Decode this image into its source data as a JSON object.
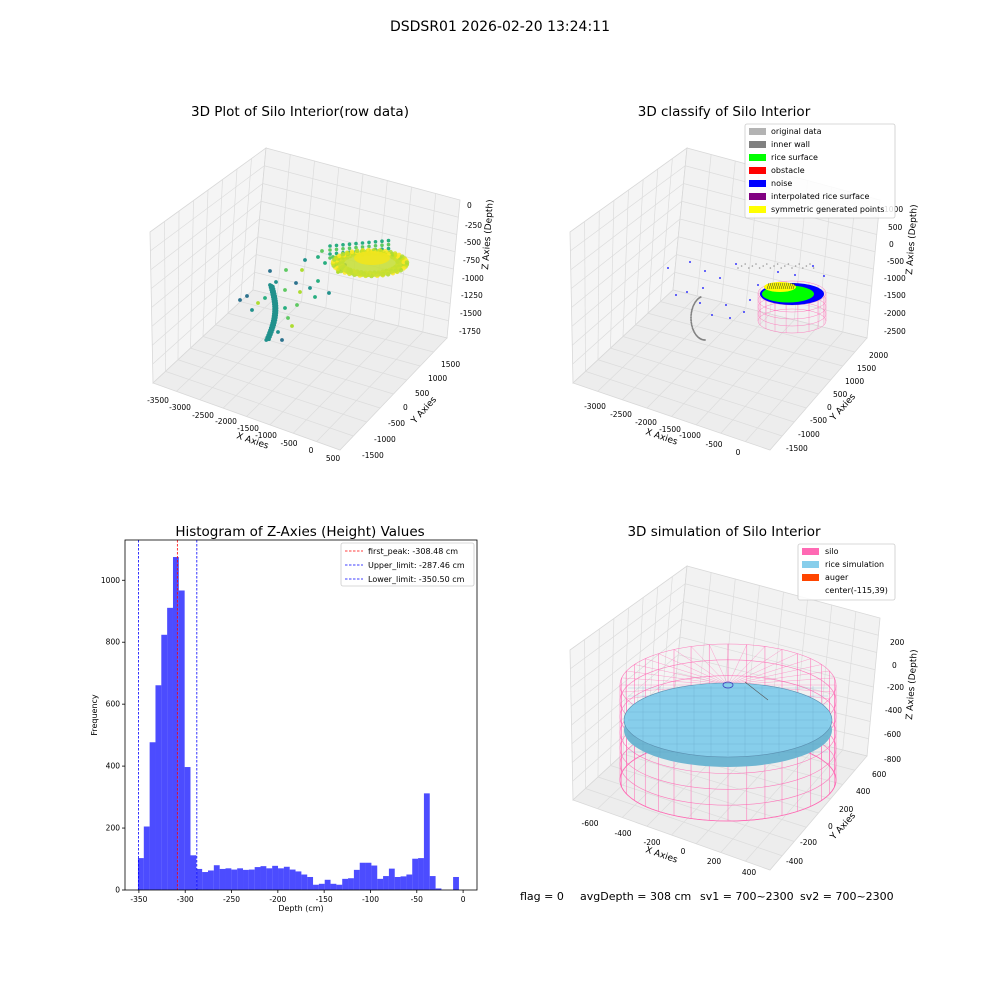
{
  "figure": {
    "suptitle": "DSDSR01 2026-02-20 13:24:11",
    "footer": {
      "flag": "flag = 0",
      "avg_depth": "avgDepth = 308 cm",
      "sv1": "sv1 = 700~2300",
      "sv2": "sv2 = 700~2300"
    }
  },
  "panels": {
    "raw": {
      "title": "3D Plot of Silo Interior(row data)",
      "xlabel": "X Axies",
      "ylabel": "Y Axies",
      "zlabel": "Z Axies (Depth)",
      "xticks": [
        "-3500",
        "-3000",
        "-2500",
        "-2000",
        "-1500",
        "-1000",
        "-500",
        "0",
        "500"
      ],
      "yticks": [
        "-1500",
        "-1000",
        "-500",
        "0",
        "500",
        "1000",
        "1500"
      ],
      "zticks": [
        "0",
        "-250",
        "-500",
        "-750",
        "-1000",
        "-1250",
        "-1500",
        "-1750"
      ]
    },
    "classify": {
      "title": "3D classify of Silo Interior",
      "xlabel": "X Axies",
      "ylabel": "Y Axies",
      "zlabel": "Z Axies (Depth)",
      "xticks": [
        "-3000",
        "-2500",
        "-2000",
        "-1500",
        "-1000",
        "-500",
        "0"
      ],
      "yticks": [
        "-1500",
        "-1000",
        "-500",
        "0",
        "500",
        "1000",
        "1500",
        "2000"
      ],
      "zticks": [
        "1000",
        "500",
        "0",
        "-500",
        "-1000",
        "-1500",
        "-2000",
        "-2500"
      ],
      "legend": [
        {
          "label": "original data",
          "color": "#b3b3b3"
        },
        {
          "label": "inner wall",
          "color": "#808080"
        },
        {
          "label": "rice surface",
          "color": "#00ff00"
        },
        {
          "label": "obstacle",
          "color": "#ff0000"
        },
        {
          "label": "noise",
          "color": "#0000ff"
        },
        {
          "label": "interpolated rice surface",
          "color": "#800080"
        },
        {
          "label": "symmetric generated points",
          "color": "#ffff00"
        }
      ]
    },
    "simulation": {
      "title": "3D simulation of Silo Interior",
      "xlabel": "X Axies",
      "ylabel": "Y Axies",
      "zlabel": "Z Axies (Depth)",
      "xticks": [
        "-600",
        "-400",
        "-200",
        "0",
        "200",
        "400"
      ],
      "yticks": [
        "-400",
        "-200",
        "0",
        "200",
        "400",
        "600"
      ],
      "zticks": [
        "200",
        "0",
        "-200",
        "-400",
        "-600",
        "-800"
      ],
      "legend": [
        {
          "label": "silo",
          "color": "#ff69b4"
        },
        {
          "label": "rice simulation",
          "color": "#87ceeb"
        },
        {
          "label": "auger",
          "color": "#ff4500"
        },
        {
          "label": "center(-115,39)",
          "color": ""
        }
      ]
    }
  },
  "chart_data": [
    {
      "type": "histogram",
      "title": "Histogram of Z-Axies (Height) Values",
      "xlabel": "Depth (cm)",
      "ylabel": "Frequency",
      "bar_color": "#0000ff",
      "xlim": [
        -365,
        15
      ],
      "ylim": [
        0,
        1130
      ],
      "xticks": [
        -350,
        -300,
        -250,
        -200,
        -150,
        -100,
        -50,
        0
      ],
      "yticks": [
        0,
        200,
        400,
        600,
        800,
        1000
      ],
      "bin_width": 6.3,
      "bin_starts": [
        -351,
        -344.7,
        -338.4,
        -332.1,
        -325.8,
        -319.5,
        -313.2,
        -306.9,
        -300.6,
        -294.3,
        -288,
        -281.7,
        -275.4,
        -269.1,
        -262.8,
        -256.5,
        -250.2,
        -243.9,
        -237.6,
        -231.3,
        -225,
        -218.7,
        -212.4,
        -206.1,
        -199.8,
        -193.5,
        -187.2,
        -180.9,
        -174.6,
        -168.3,
        -162,
        -155.7,
        -149.4,
        -143.1,
        -136.8,
        -130.5,
        -124.2,
        -117.9,
        -111.6,
        -105.3,
        -99,
        -92.7,
        -86.4,
        -80.1,
        -73.8,
        -67.5,
        -61.2,
        -54.9,
        -48.6,
        -42.3,
        -36,
        -29.7,
        -23.4,
        -17.1,
        -10.8,
        -4.5
      ],
      "values": [
        103,
        205,
        477,
        661,
        824,
        911,
        1075,
        967,
        397,
        112,
        68,
        58,
        63,
        80,
        68,
        70,
        66,
        70,
        65,
        66,
        74,
        77,
        70,
        78,
        70,
        75,
        66,
        60,
        50,
        42,
        17,
        20,
        33,
        20,
        17,
        36,
        38,
        65,
        88,
        88,
        79,
        36,
        45,
        69,
        42,
        44,
        50,
        101,
        103,
        312,
        45,
        5,
        0,
        0,
        42,
        0
      ],
      "vlines": [
        {
          "label": "first_peak: -308.48 cm",
          "x": -308.48,
          "color": "#ff0000"
        },
        {
          "label": "Upper_limit: -287.46 cm",
          "x": -287.46,
          "color": "#0000ff"
        },
        {
          "label": "Lower_limit: -350.50 cm",
          "x": -350.5,
          "color": "#0000ff"
        }
      ],
      "legend_position": "top-right"
    }
  ]
}
